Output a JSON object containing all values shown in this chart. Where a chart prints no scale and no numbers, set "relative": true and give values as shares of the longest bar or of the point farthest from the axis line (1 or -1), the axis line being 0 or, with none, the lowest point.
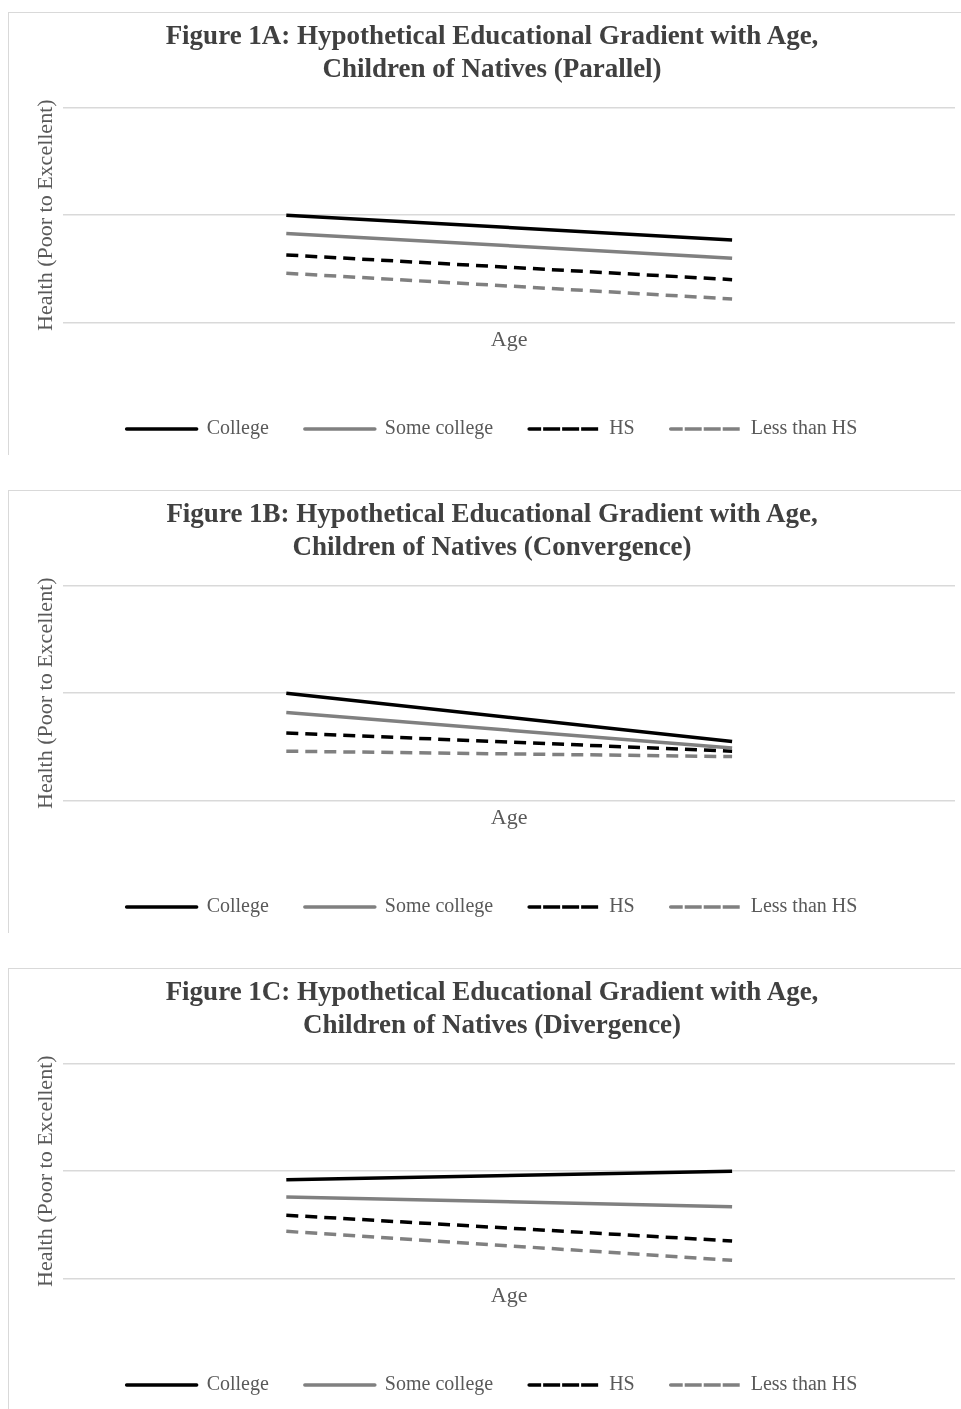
{
  "chart_data": [
    {
      "type": "line",
      "title": "Figure 1A: Hypothetical Educational Gradient with Age, Children of Natives (Parallel)",
      "xlabel": "Age",
      "ylabel": "Health (Poor to Excellent)",
      "categories": [
        null,
        null
      ],
      "relative": true,
      "grid": "y",
      "legend": "bottom",
      "marker": "none",
      "series": [
        {
          "name": "College",
          "color": "#000000",
          "line_style": "solid",
          "values": [
            1,
            0.77
          ]
        },
        {
          "name": "Some college",
          "color": "#808080",
          "line_style": "solid",
          "values": [
            0.83,
            0.6
          ]
        },
        {
          "name": "HS",
          "color": "#000000",
          "line_style": "dashed",
          "values": [
            0.63,
            0.4
          ]
        },
        {
          "name": "Less than HS",
          "color": "#808080",
          "line_style": "dashed",
          "values": [
            0.46,
            0.22
          ]
        }
      ]
    },
    {
      "type": "line",
      "title": "Figure 1B: Hypothetical Educational Gradient with Age, Children of Natives (Convergence)",
      "xlabel": "Age",
      "ylabel": "Health (Poor to Excellent)",
      "categories": [
        null,
        null
      ],
      "relative": true,
      "grid": "y",
      "legend": "bottom",
      "marker": "none",
      "series": [
        {
          "name": "College",
          "color": "#000000",
          "line_style": "solid",
          "values": [
            1,
            0.55
          ]
        },
        {
          "name": "Some college",
          "color": "#808080",
          "line_style": "solid",
          "values": [
            0.82,
            0.49
          ]
        },
        {
          "name": "HS",
          "color": "#000000",
          "line_style": "dashed",
          "values": [
            0.63,
            0.46
          ]
        },
        {
          "name": "Less than HS",
          "color": "#808080",
          "line_style": "dashed",
          "values": [
            0.46,
            0.41
          ]
        }
      ]
    },
    {
      "type": "line",
      "title": "Figure 1C: Hypothetical Educational Gradient with Age, Children of Natives (Divergence)",
      "xlabel": "Age",
      "ylabel": "Health (Poor to Excellent)",
      "categories": [
        null,
        null
      ],
      "relative": true,
      "grid": "y",
      "legend": "bottom",
      "marker": "none",
      "series": [
        {
          "name": "College",
          "color": "#000000",
          "line_style": "solid",
          "values": [
            0.92,
            1
          ]
        },
        {
          "name": "Some college",
          "color": "#808080",
          "line_style": "solid",
          "values": [
            0.76,
            0.67
          ]
        },
        {
          "name": "HS",
          "color": "#000000",
          "line_style": "dashed",
          "values": [
            0.59,
            0.35
          ]
        },
        {
          "name": "Less than HS",
          "color": "#808080",
          "line_style": "dashed",
          "values": [
            0.44,
            0.17
          ]
        }
      ]
    }
  ]
}
